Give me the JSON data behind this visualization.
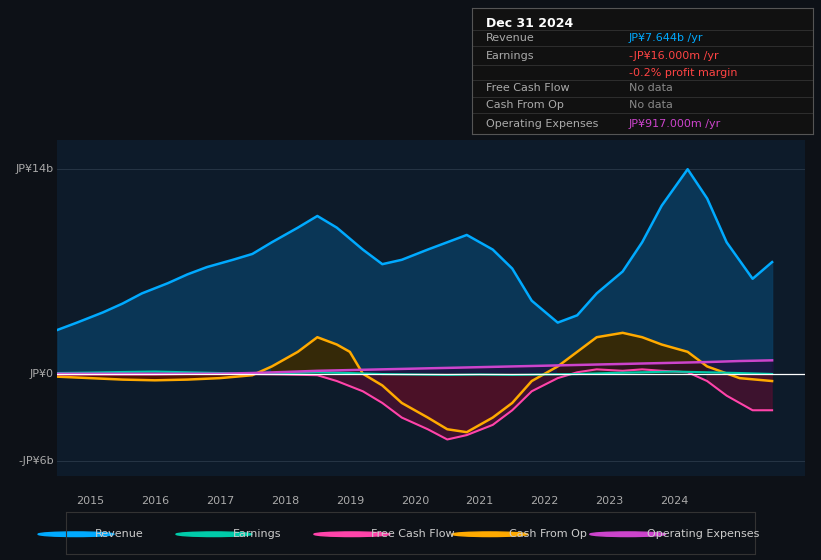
{
  "bg_color": "#0d1117",
  "plot_bg_color": "#0d1b2a",
  "ylabel_top": "JP¥14b",
  "ylabel_bottom": "-JP¥6b",
  "ylabel_zero": "JP¥0",
  "x_ticks": [
    2014.5,
    2015.5,
    2016.5,
    2017.5,
    2018.5,
    2019.5,
    2020.5,
    2021.5,
    2022.5,
    2023.5,
    2024.5
  ],
  "x_tick_labels": [
    "2015",
    "2016",
    "2017",
    "2018",
    "2019",
    "2020",
    "2021",
    "2022",
    "2023",
    "2024",
    ""
  ],
  "ylim": [
    -7,
    16
  ],
  "xlim": [
    2014.0,
    2025.5
  ],
  "info_box": {
    "title": "Dec 31 2024",
    "rows": [
      {
        "label": "Revenue",
        "value": "JP¥7.644b /yr",
        "value_color": "#00aaff"
      },
      {
        "label": "Earnings",
        "value": "-JP¥16.000m /yr",
        "value_color": "#ff4444"
      },
      {
        "label": "",
        "value": "-0.2% profit margin",
        "value_color": "#ff4444"
      },
      {
        "label": "Free Cash Flow",
        "value": "No data",
        "value_color": "#888888"
      },
      {
        "label": "Cash From Op",
        "value": "No data",
        "value_color": "#888888"
      },
      {
        "label": "Operating Expenses",
        "value": "JP¥917.000m /yr",
        "value_color": "#cc44cc"
      }
    ]
  },
  "revenue_color": "#00aaff",
  "earnings_color": "#00ccaa",
  "fcf_color": "#ff44aa",
  "cashfromop_color": "#ffaa00",
  "opex_color": "#cc44cc",
  "legend_entries": [
    {
      "label": "Revenue",
      "color": "#00aaff"
    },
    {
      "label": "Earnings",
      "color": "#00ccaa"
    },
    {
      "label": "Free Cash Flow",
      "color": "#ff44aa"
    },
    {
      "label": "Cash From Op",
      "color": "#ffaa00"
    },
    {
      "label": "Operating Expenses",
      "color": "#cc44cc"
    }
  ],
  "revenue_x": [
    2014.0,
    2014.3,
    2014.7,
    2015.0,
    2015.3,
    2015.7,
    2016.0,
    2016.3,
    2016.7,
    2017.0,
    2017.3,
    2017.7,
    2018.0,
    2018.3,
    2018.7,
    2019.0,
    2019.3,
    2019.7,
    2020.0,
    2020.3,
    2020.7,
    2021.0,
    2021.3,
    2021.7,
    2022.0,
    2022.3,
    2022.7,
    2023.0,
    2023.3,
    2023.7,
    2024.0,
    2024.3,
    2024.7,
    2025.0
  ],
  "revenue_y": [
    3.0,
    3.5,
    4.2,
    4.8,
    5.5,
    6.2,
    6.8,
    7.3,
    7.8,
    8.2,
    9.0,
    10.0,
    10.8,
    10.0,
    8.5,
    7.5,
    7.8,
    8.5,
    9.0,
    9.5,
    8.5,
    7.2,
    5.0,
    3.5,
    4.0,
    5.5,
    7.0,
    9.0,
    11.5,
    14.0,
    12.0,
    9.0,
    6.5,
    7.644
  ],
  "earnings_x": [
    2014.0,
    2014.5,
    2015.0,
    2015.5,
    2016.0,
    2016.5,
    2017.0,
    2017.5,
    2018.0,
    2018.5,
    2019.0,
    2019.5,
    2020.0,
    2020.5,
    2021.0,
    2021.5,
    2022.0,
    2022.5,
    2023.0,
    2023.5,
    2024.0,
    2024.5,
    2025.0
  ],
  "earnings_y": [
    0.05,
    0.08,
    0.12,
    0.15,
    0.1,
    0.05,
    0.0,
    0.05,
    0.1,
    0.05,
    -0.02,
    -0.05,
    -0.08,
    -0.05,
    -0.08,
    -0.05,
    -0.02,
    0.05,
    0.1,
    0.15,
    0.1,
    0.05,
    -0.016
  ],
  "cashfromop_x": [
    2014.0,
    2014.5,
    2015.0,
    2015.5,
    2016.0,
    2016.5,
    2017.0,
    2017.3,
    2017.7,
    2018.0,
    2018.3,
    2018.5,
    2018.7,
    2019.0,
    2019.3,
    2019.7,
    2020.0,
    2020.3,
    2020.7,
    2021.0,
    2021.3,
    2021.7,
    2022.0,
    2022.3,
    2022.7,
    2023.0,
    2023.3,
    2023.7,
    2024.0,
    2024.5,
    2025.0
  ],
  "cashfromop_y": [
    -0.2,
    -0.3,
    -0.4,
    -0.45,
    -0.4,
    -0.3,
    -0.1,
    0.5,
    1.5,
    2.5,
    2.0,
    1.5,
    0.0,
    -0.8,
    -2.0,
    -3.0,
    -3.8,
    -4.0,
    -3.0,
    -2.0,
    -0.5,
    0.5,
    1.5,
    2.5,
    2.8,
    2.5,
    2.0,
    1.5,
    0.5,
    -0.3,
    -0.5
  ],
  "fcf_x": [
    2014.0,
    2014.5,
    2015.0,
    2015.5,
    2016.0,
    2016.5,
    2017.0,
    2017.5,
    2018.0,
    2018.3,
    2018.7,
    2019.0,
    2019.3,
    2019.7,
    2020.0,
    2020.3,
    2020.7,
    2021.0,
    2021.3,
    2021.7,
    2022.0,
    2022.3,
    2022.7,
    2023.0,
    2023.3,
    2023.7,
    2024.0,
    2024.3,
    2024.7,
    2025.0
  ],
  "fcf_y": [
    -0.05,
    -0.05,
    -0.05,
    -0.05,
    -0.02,
    -0.02,
    -0.02,
    -0.05,
    -0.1,
    -0.5,
    -1.2,
    -2.0,
    -3.0,
    -3.8,
    -4.5,
    -4.2,
    -3.5,
    -2.5,
    -1.2,
    -0.3,
    0.1,
    0.3,
    0.2,
    0.3,
    0.2,
    0.1,
    -0.5,
    -1.5,
    -2.5,
    -2.5
  ],
  "opex_x": [
    2014.0,
    2014.5,
    2015.0,
    2015.5,
    2016.0,
    2016.5,
    2017.0,
    2017.5,
    2018.0,
    2018.5,
    2019.0,
    2019.5,
    2020.0,
    2020.5,
    2021.0,
    2021.5,
    2022.0,
    2022.5,
    2023.0,
    2023.5,
    2024.0,
    2024.5,
    2025.0
  ],
  "opex_y": [
    0.0,
    0.0,
    0.0,
    0.0,
    0.0,
    0.0,
    0.05,
    0.12,
    0.2,
    0.25,
    0.3,
    0.35,
    0.4,
    0.45,
    0.5,
    0.55,
    0.6,
    0.65,
    0.7,
    0.75,
    0.8,
    0.87,
    0.917
  ]
}
